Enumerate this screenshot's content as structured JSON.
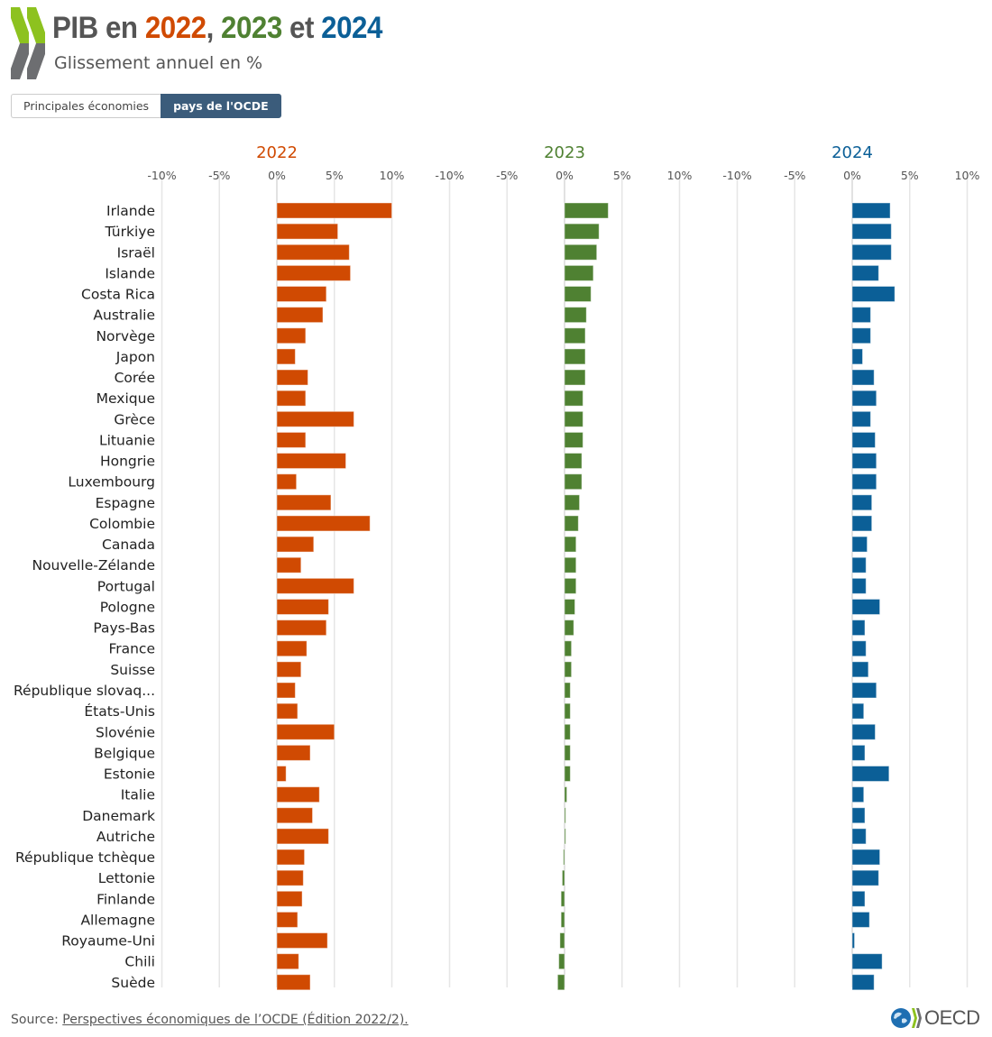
{
  "header": {
    "title_prefix": "PIB en",
    "title_year1": "2022",
    "title_sep1": ",",
    "title_year2": "2023",
    "title_sep2": "et",
    "title_year3": "2024",
    "subtitle": "Glissement annuel en %"
  },
  "toggle": {
    "options": [
      "Principales économies",
      "pays de l'OCDE"
    ],
    "selected": "pays de l'OCDE"
  },
  "colors": {
    "2022": "#d04a02",
    "2023": "#4f8132",
    "2024": "#0b5f97",
    "toggle_active": "#3b5c7b",
    "logo_green": "#8dc21f",
    "logo_gray": "#6d6e71"
  },
  "footer": {
    "source_label": "Source:",
    "source_link": "Perspectives économiques de l’OCDE (Édition 2022/2).",
    "logo_text": "OECD"
  },
  "chart_data": {
    "type": "bar",
    "orientation": "horizontal",
    "layout": "small-multiples",
    "title": "PIB en 2022, 2023 et 2024",
    "subtitle": "Glissement annuel en %",
    "xlim": [
      -10,
      10
    ],
    "xticks": [
      -10,
      -5,
      0,
      5,
      10
    ],
    "xtick_labels": [
      "-10%",
      "-5%",
      "0%",
      "5%",
      "10%"
    ],
    "grid": true,
    "categories": [
      "Irlande",
      "Türkiye",
      "Israël",
      "Islande",
      "Costa Rica",
      "Australie",
      "Norvège",
      "Japon",
      "Corée",
      "Mexique",
      "Grèce",
      "Lituanie",
      "Hongrie",
      "Luxembourg",
      "Espagne",
      "Colombie",
      "Canada",
      "Nouvelle-Zélande",
      "Portugal",
      "Pologne",
      "Pays-Bas",
      "France",
      "Suisse",
      "République slovaq...",
      "États-Unis",
      "Slovénie",
      "Belgique",
      "Estonie",
      "Italie",
      "Danemark",
      "Autriche",
      "République tchèque",
      "Lettonie",
      "Finlande",
      "Allemagne",
      "Royaume-Uni",
      "Chili",
      "Suède"
    ],
    "series": [
      {
        "name": "2022",
        "values": [
          10.0,
          5.3,
          6.3,
          6.4,
          4.3,
          4.0,
          2.5,
          1.6,
          2.7,
          2.5,
          6.7,
          2.5,
          6.0,
          1.7,
          4.7,
          8.1,
          3.2,
          2.1,
          6.7,
          4.5,
          4.3,
          2.6,
          2.1,
          1.6,
          1.8,
          5.0,
          2.9,
          0.8,
          3.7,
          3.1,
          4.5,
          2.4,
          2.3,
          2.2,
          1.8,
          4.4,
          1.9,
          2.9
        ]
      },
      {
        "name": "2023",
        "values": [
          3.8,
          3.0,
          2.8,
          2.5,
          2.3,
          1.9,
          1.8,
          1.8,
          1.8,
          1.6,
          1.6,
          1.6,
          1.5,
          1.5,
          1.3,
          1.2,
          1.0,
          1.0,
          1.0,
          0.9,
          0.8,
          0.6,
          0.6,
          0.5,
          0.5,
          0.5,
          0.5,
          0.5,
          0.2,
          0.1,
          0.1,
          -0.1,
          -0.2,
          -0.3,
          -0.3,
          -0.4,
          -0.5,
          -0.6
        ]
      },
      {
        "name": "2024",
        "values": [
          3.3,
          3.4,
          3.4,
          2.3,
          3.7,
          1.6,
          1.6,
          0.9,
          1.9,
          2.1,
          1.6,
          2.0,
          2.1,
          2.1,
          1.7,
          1.7,
          1.3,
          1.2,
          1.2,
          2.4,
          1.1,
          1.2,
          1.4,
          2.1,
          1.0,
          2.0,
          1.1,
          3.2,
          1.0,
          1.1,
          1.2,
          2.4,
          2.3,
          1.1,
          1.5,
          0.2,
          2.6,
          1.9
        ]
      }
    ]
  }
}
